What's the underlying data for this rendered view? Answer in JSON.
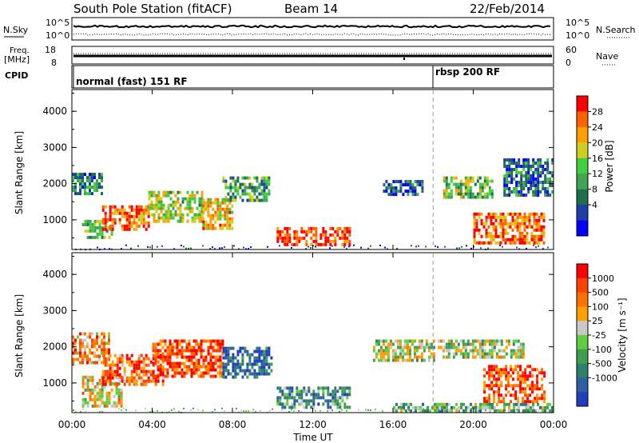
{
  "header": {
    "station": "South Pole Station (fitACF)",
    "beam": "Beam 14",
    "date": "22/Feb/2014"
  },
  "aux_panels": {
    "nsky_label": "N.Sky",
    "nsky_ticks": [
      "10^5",
      "10^0"
    ],
    "nsearch_label": "N.Search",
    "nsearch_ticks": [
      "10^5",
      "10^0"
    ],
    "freq_label": [
      "Freq.",
      "[MHz]"
    ],
    "freq_ticks": [
      "18",
      "8"
    ],
    "nave_label": "Nave",
    "nave_ticks": [
      "60",
      "0"
    ],
    "cpid_label": "CPID",
    "cpid_modes": [
      {
        "label": "normal (fast) 151 RF",
        "start_hour": 0
      },
      {
        "label": "rbsp 200 RF",
        "start_hour": 18
      }
    ]
  },
  "power_scale": {
    "title": "Power [dB]",
    "ticks": [
      "28",
      "24",
      "20",
      "16",
      "12",
      "8",
      "4"
    ],
    "colors": [
      "#0000ff",
      "#1f3fa6",
      "#1f6f4f",
      "#3fa64f",
      "#3fcf3f",
      "#cfcf1f",
      "#ffa000",
      "#ff6000",
      "#ff0000"
    ]
  },
  "velocity_scale": {
    "title": "Velocity [m s⁻¹]",
    "ticks": [
      "1000",
      "500",
      "100",
      "25",
      "-25",
      "-100",
      "-500",
      "-1000"
    ],
    "colors": [
      "#1f3fbf",
      "#2f5fa0",
      "#2f7f6f",
      "#3f9f4f",
      "#5fcf3f",
      "#c8c8c8",
      "#ffa000",
      "#ff7000",
      "#ff4000",
      "#ff0000"
    ]
  },
  "chart_data": [
    {
      "type": "heatmap",
      "quantity": "Power",
      "ylabel": "Slant Range [km]",
      "xlabel": "Time UT",
      "x_ticks": [
        "00:00",
        "04:00",
        "08:00",
        "12:00",
        "16:00",
        "20:00",
        "00:00"
      ],
      "y_ticks": [
        "1000",
        "2000",
        "3000",
        "4000"
      ],
      "xlim_hours": [
        0,
        24
      ],
      "ylim_km": [
        180,
        4600
      ],
      "mode_change_hour": 18,
      "echo_regions": [
        {
          "t0": 0.0,
          "t1": 1.5,
          "r0": 1700,
          "r1": 2300,
          "level": 0.3
        },
        {
          "t0": 0.5,
          "t1": 2.0,
          "r0": 500,
          "r1": 1000,
          "level": 0.45
        },
        {
          "t0": 1.5,
          "t1": 3.8,
          "r0": 700,
          "r1": 1400,
          "level": 0.85
        },
        {
          "t0": 3.8,
          "t1": 6.5,
          "r0": 1000,
          "r1": 1800,
          "level": 0.55
        },
        {
          "t0": 6.5,
          "t1": 8.0,
          "r0": 800,
          "r1": 1600,
          "level": 0.7
        },
        {
          "t0": 7.5,
          "t1": 9.8,
          "r0": 1500,
          "r1": 2200,
          "level": 0.4
        },
        {
          "t0": 10.2,
          "t1": 13.8,
          "r0": 350,
          "r1": 800,
          "level": 0.9
        },
        {
          "t0": 15.5,
          "t1": 17.5,
          "r0": 1700,
          "r1": 2100,
          "level": 0.2
        },
        {
          "t0": 18.5,
          "t1": 21.0,
          "r0": 1600,
          "r1": 2200,
          "level": 0.5
        },
        {
          "t0": 20.0,
          "t1": 23.5,
          "r0": 400,
          "r1": 1200,
          "level": 0.8
        },
        {
          "t0": 21.5,
          "t1": 24.0,
          "r0": 1700,
          "r1": 2700,
          "level": 0.25
        }
      ]
    },
    {
      "type": "heatmap",
      "quantity": "Velocity",
      "ylabel": "Slant Range [km]",
      "xlabel": "Time UT",
      "x_ticks": [
        "00:00",
        "04:00",
        "08:00",
        "12:00",
        "16:00",
        "20:00",
        "00:00"
      ],
      "y_ticks": [
        "1000",
        "2000",
        "3000",
        "4000"
      ],
      "xlim_hours": [
        0,
        24
      ],
      "ylim_km": [
        180,
        4600
      ],
      "mode_change_hour": 18,
      "echo_regions": [
        {
          "t0": 0.0,
          "t1": 1.8,
          "r0": 1600,
          "r1": 2400,
          "level": 0.7
        },
        {
          "t0": 0.5,
          "t1": 2.5,
          "r0": 400,
          "r1": 1200,
          "level": 0.6
        },
        {
          "t0": 1.5,
          "t1": 4.5,
          "r0": 1000,
          "r1": 1800,
          "level": 0.8
        },
        {
          "t0": 4.0,
          "t1": 7.5,
          "r0": 1200,
          "r1": 2200,
          "level": 0.85
        },
        {
          "t0": 7.5,
          "t1": 10.0,
          "r0": 1200,
          "r1": 2000,
          "level": 0.15
        },
        {
          "t0": 10.2,
          "t1": 13.8,
          "r0": 350,
          "r1": 900,
          "level": 0.3
        },
        {
          "t0": 15.0,
          "t1": 18.5,
          "r0": 1600,
          "r1": 2200,
          "level": 0.5
        },
        {
          "t0": 18.5,
          "t1": 22.5,
          "r0": 1700,
          "r1": 2200,
          "level": 0.5
        },
        {
          "t0": 20.5,
          "t1": 23.5,
          "r0": 500,
          "r1": 1500,
          "level": 0.85
        },
        {
          "t0": 16.0,
          "t1": 24.0,
          "r0": 200,
          "r1": 450,
          "level": 0.4
        }
      ]
    }
  ]
}
